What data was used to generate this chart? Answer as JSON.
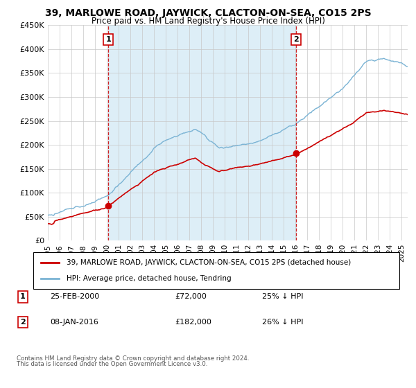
{
  "title": "39, MARLOWE ROAD, JAYWICK, CLACTON-ON-SEA, CO15 2PS",
  "subtitle": "Price paid vs. HM Land Registry's House Price Index (HPI)",
  "hpi_label": "HPI: Average price, detached house, Tendring",
  "property_label": "39, MARLOWE ROAD, JAYWICK, CLACTON-ON-SEA, CO15 2PS (detached house)",
  "sale1_date": 2000.12,
  "sale1_price": 72000,
  "sale1_label": "1",
  "sale1_text": "25-FEB-2000",
  "sale1_amount": "£72,000",
  "sale1_pct": "25% ↓ HPI",
  "sale2_date": 2016.03,
  "sale2_price": 182000,
  "sale2_label": "2",
  "sale2_text": "08-JAN-2016",
  "sale2_amount": "£182,000",
  "sale2_pct": "26% ↓ HPI",
  "hpi_color": "#7ab3d4",
  "hpi_fill_color": "#ddeef7",
  "price_color": "#cc0000",
  "marker_box_color": "#cc0000",
  "vline_color": "#cc0000",
  "ylim": [
    0,
    450000
  ],
  "xlim": [
    1995,
    2025.5
  ],
  "ylabel_ticks": [
    0,
    50000,
    100000,
    150000,
    200000,
    250000,
    300000,
    350000,
    400000,
    450000
  ],
  "xticks": [
    1995,
    1996,
    1997,
    1998,
    1999,
    2000,
    2001,
    2002,
    2003,
    2004,
    2005,
    2006,
    2007,
    2008,
    2009,
    2010,
    2011,
    2012,
    2013,
    2014,
    2015,
    2016,
    2017,
    2018,
    2019,
    2020,
    2021,
    2022,
    2023,
    2024,
    2025
  ],
  "footer1": "Contains HM Land Registry data © Crown copyright and database right 2024.",
  "footer2": "This data is licensed under the Open Government Licence v3.0."
}
